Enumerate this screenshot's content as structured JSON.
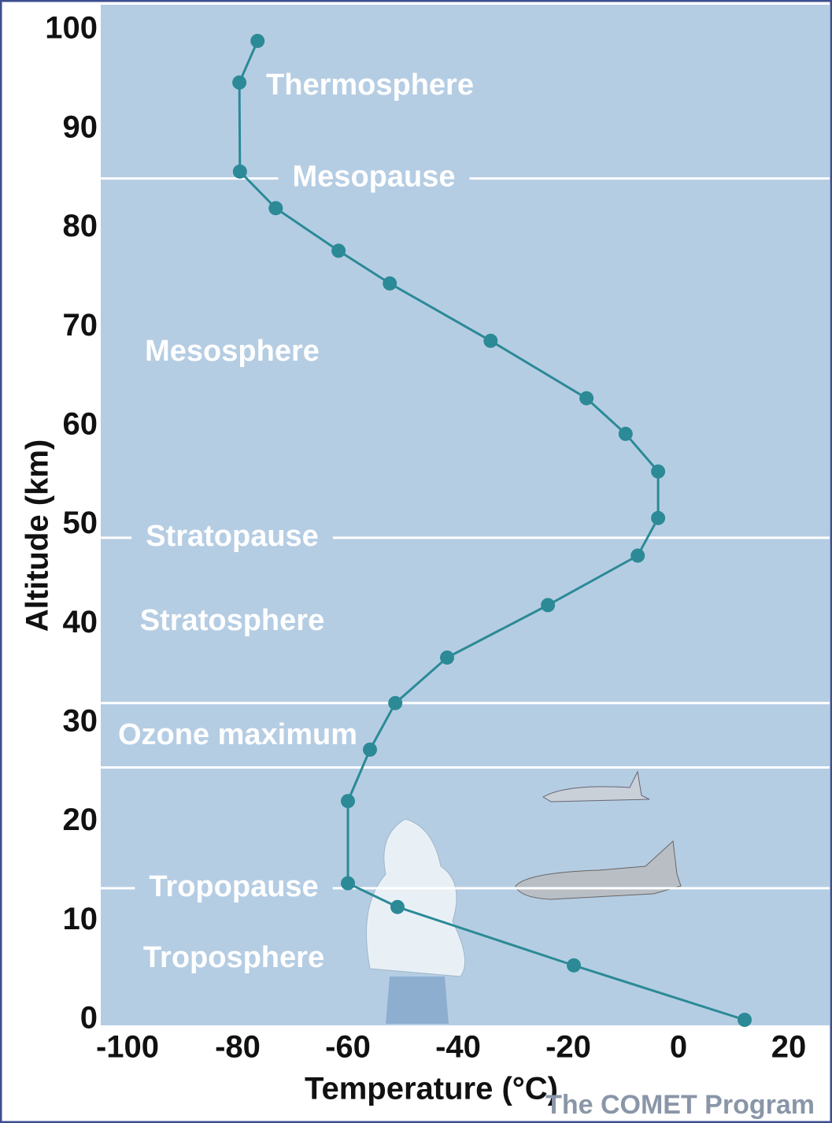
{
  "chart_data": {
    "type": "line",
    "x_label": "Temperature (°C)",
    "y_label": "Altitude (km)",
    "credit": "The COMET Program",
    "x": [
      12,
      -19,
      -51,
      -60,
      -60,
      -56,
      -51.4,
      -42,
      -23.7,
      -7.4,
      -3.7,
      -3.7,
      -9.6,
      -16.7,
      -34.1,
      -52.4,
      -61.7,
      -73.1,
      -79.6,
      -79.7,
      -76.4
    ],
    "series": [
      {
        "color": "#2b8a96",
        "values": [
          0,
          5.5,
          11.4,
          13.8,
          22.1,
          27.3,
          32,
          36.6,
          41.9,
          46.9,
          50.7,
          55.4,
          59.2,
          62.8,
          68.6,
          74.4,
          77.7,
          82,
          85.7,
          94.7,
          98.9
        ]
      }
    ],
    "xlim": [
      -105,
      27
    ],
    "ylim": [
      0,
      102
    ],
    "xticks": [
      -100,
      -80,
      -60,
      -40,
      -20,
      0,
      20
    ],
    "yticks": [
      0,
      10,
      20,
      30,
      40,
      50,
      60,
      70,
      80,
      90,
      100
    ],
    "reference_lines": [
      {
        "value": 85,
        "label": "Mesopause"
      },
      {
        "value": 48.7,
        "label": "Stratopause"
      },
      {
        "value": 32
      },
      {
        "value": 25.5
      },
      {
        "value": 13.3,
        "label": "Tropopause"
      }
    ],
    "region_labels": [
      "Thermosphere",
      "Mesosphere",
      "Stratosphere",
      "Ozone maximum",
      "Troposphere"
    ]
  }
}
